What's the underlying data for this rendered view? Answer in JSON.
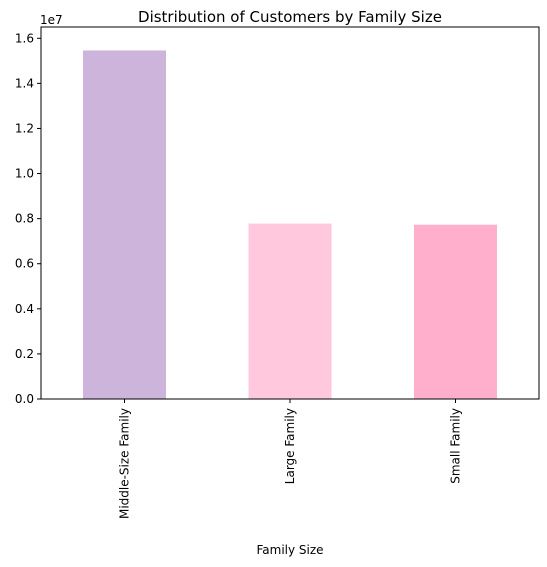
{
  "chart_data": {
    "type": "bar",
    "title": "Distribution of Customers by Family Size",
    "xlabel": "Family Size",
    "ylabel": "",
    "offset_label": "1e7",
    "categories": [
      "Middle-Size Family",
      "Large Family",
      "Small Family"
    ],
    "values": [
      15460000,
      7780000,
      7730000
    ],
    "colors": [
      "#cdb4db",
      "#ffc8dd",
      "#ffafcc"
    ],
    "ylim": [
      0,
      16500000
    ],
    "yticks": [
      0,
      2000000,
      4000000,
      6000000,
      8000000,
      10000000,
      12000000,
      14000000,
      16000000
    ],
    "ytick_labels": [
      "0.0",
      "0.2",
      "0.4",
      "0.6",
      "0.8",
      "1.0",
      "1.2",
      "1.4",
      "1.6"
    ],
    "grid": false,
    "legend": "none"
  }
}
